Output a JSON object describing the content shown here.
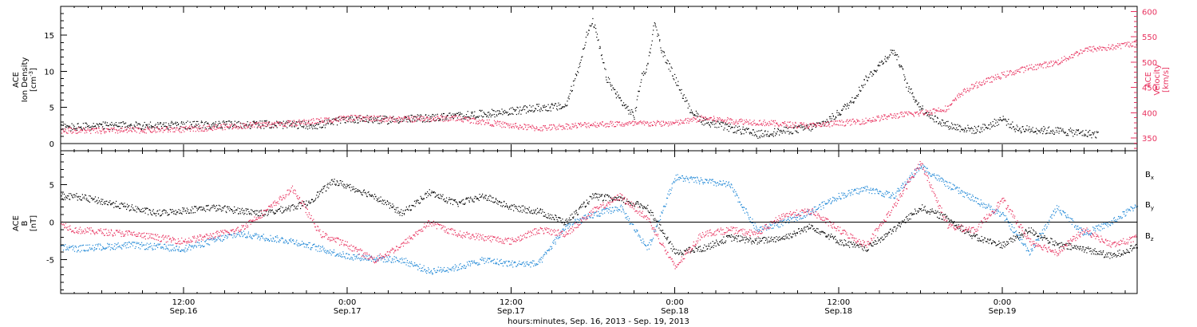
{
  "chart_data": [
    {
      "type": "scatter",
      "panel": "density-velocity",
      "left_axis": {
        "instrument": "ACE",
        "label": "Ion Density",
        "unit": "[cm",
        "unit_exp": "-3",
        "unit_close": "]",
        "range": [
          -1,
          19
        ],
        "ticks": [
          0,
          5,
          10,
          15
        ],
        "tick_labels": [
          "0",
          "5",
          "10",
          "15"
        ]
      },
      "right_axis": {
        "instrument": "ACE",
        "label": "Velocity",
        "unit": "[km/s]",
        "range": [
          325,
          610
        ],
        "ticks": [
          350,
          400,
          450,
          500,
          550,
          600
        ],
        "tick_labels": [
          "350",
          "400",
          "450",
          "500",
          "550",
          "600"
        ],
        "color": "#e8325f"
      },
      "x_range_hours": [
        -8,
        72
      ],
      "series": [
        {
          "color": "#000000",
          "axis": "left",
          "values": [
            [
              -8,
              2.5
            ],
            [
              -4,
              2.3
            ],
            [
              0,
              2.0
            ],
            [
              6,
              2.5
            ],
            [
              12,
              2.6
            ],
            [
              18,
              2.7
            ],
            [
              22,
              2.6
            ],
            [
              24,
              3.5
            ],
            [
              27,
              3.3
            ],
            [
              30,
              3.6
            ],
            [
              33,
              4.0
            ],
            [
              36,
              4.5
            ],
            [
              38,
              5.0
            ],
            [
              40,
              5.2
            ],
            [
              41,
              11
            ],
            [
              41.5,
              15
            ],
            [
              42,
              17
            ],
            [
              42.5,
              13
            ],
            [
              43,
              9
            ],
            [
              44,
              6
            ],
            [
              45,
              3.8
            ],
            [
              45.5,
              9
            ],
            [
              46,
              11
            ],
            [
              46.5,
              17
            ],
            [
              47,
              13
            ],
            [
              48,
              9
            ],
            [
              49,
              5
            ],
            [
              50,
              3.2
            ],
            [
              52,
              2.2
            ],
            [
              53,
              1.8
            ],
            [
              54,
              1.3
            ],
            [
              56,
              1.8
            ],
            [
              58,
              2.3
            ],
            [
              59,
              3
            ],
            [
              60,
              4.3
            ],
            [
              61,
              6
            ],
            [
              62,
              9
            ],
            [
              63,
              11
            ],
            [
              64,
              13
            ],
            [
              64.5,
              11
            ],
            [
              65,
              8
            ],
            [
              66,
              5
            ],
            [
              67,
              3.5
            ],
            [
              68,
              2.6
            ],
            [
              69,
              2.2
            ],
            [
              70,
              1.9
            ],
            [
              71,
              2.5
            ],
            [
              72,
              3.5
            ],
            [
              73,
              2.1
            ],
            [
              74,
              2.0
            ],
            [
              76,
              1.8
            ],
            [
              79,
              1.3
            ]
          ]
        },
        {
          "color": "#e8325f",
          "axis": "right",
          "values": [
            [
              -8,
              365
            ],
            [
              -4,
              378
            ],
            [
              0,
              368
            ],
            [
              6,
              365
            ],
            [
              12,
              368
            ],
            [
              16,
              375
            ],
            [
              20,
              380
            ],
            [
              24,
              390
            ],
            [
              28,
              388
            ],
            [
              32,
              390
            ],
            [
              36,
              375
            ],
            [
              38,
              370
            ],
            [
              42,
              378
            ],
            [
              48,
              380
            ],
            [
              50,
              390
            ],
            [
              52,
              385
            ],
            [
              54,
              382
            ],
            [
              56,
              378
            ],
            [
              58,
              375
            ],
            [
              60,
              380
            ],
            [
              62,
              385
            ],
            [
              64,
              395
            ],
            [
              66,
              400
            ],
            [
              68,
              410
            ],
            [
              69,
              440
            ],
            [
              70,
              455
            ],
            [
              72,
              475
            ],
            [
              74,
              490
            ],
            [
              76,
              500
            ],
            [
              78,
              525
            ],
            [
              80,
              530
            ],
            [
              82,
              540
            ],
            [
              84,
              550
            ],
            [
              86,
              565
            ],
            [
              88,
              560
            ],
            [
              90,
              545
            ],
            [
              92,
              545
            ]
          ]
        }
      ]
    },
    {
      "type": "scatter",
      "panel": "magnetic-field",
      "left_axis": {
        "instrument": "ACE",
        "label": "B",
        "unit": "[nT]",
        "range": [
          -9.5,
          9.5
        ],
        "ticks": [
          -5,
          0,
          5
        ],
        "tick_labels": [
          "-5",
          "0",
          "5"
        ]
      },
      "x_range_hours": [
        -8,
        72
      ],
      "series": [
        {
          "name": "B",
          "subscript": "x",
          "color": "#000000",
          "values": [
            [
              -8,
              3.5
            ],
            [
              -4,
              1.5
            ],
            [
              0,
              3.2
            ],
            [
              4,
              3.5
            ],
            [
              6,
              2.8
            ],
            [
              10,
              1.2
            ],
            [
              14,
              2.0
            ],
            [
              18,
              1.2
            ],
            [
              21,
              2.5
            ],
            [
              23,
              5.5
            ],
            [
              26,
              3.5
            ],
            [
              28,
              1.2
            ],
            [
              30,
              4.0
            ],
            [
              32,
              2.5
            ],
            [
              34,
              3.5
            ],
            [
              36,
              2.0
            ],
            [
              38,
              1.5
            ],
            [
              40,
              0
            ],
            [
              42,
              3.5
            ],
            [
              44,
              3.0
            ],
            [
              46,
              2.0
            ],
            [
              48,
              -4.0
            ],
            [
              50,
              -3.5
            ],
            [
              52,
              -2.0
            ],
            [
              54,
              -2.5
            ],
            [
              56,
              -2.0
            ],
            [
              58,
              -0.5
            ],
            [
              60,
              -2.5
            ],
            [
              62,
              -3.5
            ],
            [
              64,
              -1.0
            ],
            [
              66,
              2.0
            ],
            [
              68,
              0.5
            ],
            [
              70,
              -2.0
            ],
            [
              72,
              -3.0
            ],
            [
              74,
              -1.0
            ],
            [
              76,
              -3.0
            ],
            [
              78,
              -3.5
            ],
            [
              80,
              -4.5
            ],
            [
              82,
              -3.0
            ],
            [
              84,
              -4.0
            ],
            [
              86,
              -4.0
            ]
          ]
        },
        {
          "name": "B",
          "subscript": "y",
          "color": "#1f87d6",
          "values": [
            [
              -8,
              -3.0
            ],
            [
              -4,
              -4.0
            ],
            [
              0,
              -2.5
            ],
            [
              4,
              -3.5
            ],
            [
              8,
              -3.0
            ],
            [
              12,
              -3.5
            ],
            [
              16,
              -1.5
            ],
            [
              20,
              -2.5
            ],
            [
              24,
              -4.5
            ],
            [
              28,
              -5.0
            ],
            [
              30,
              -6.5
            ],
            [
              32,
              -6.0
            ],
            [
              34,
              -5.0
            ],
            [
              36,
              -5.5
            ],
            [
              38,
              -5.5
            ],
            [
              40,
              -0.5
            ],
            [
              42,
              1.0
            ],
            [
              44,
              2.0
            ],
            [
              46,
              -3.5
            ],
            [
              48,
              6.0
            ],
            [
              50,
              5.5
            ],
            [
              52,
              5.0
            ],
            [
              54,
              -1.0
            ],
            [
              56,
              0
            ],
            [
              58,
              1.5
            ],
            [
              60,
              3.5
            ],
            [
              62,
              4.5
            ],
            [
              64,
              3.5
            ],
            [
              66,
              7.5
            ],
            [
              68,
              5.0
            ],
            [
              70,
              3.0
            ],
            [
              72,
              1.0
            ],
            [
              74,
              -4.0
            ],
            [
              76,
              2.0
            ],
            [
              78,
              -1.5
            ],
            [
              80,
              0
            ],
            [
              82,
              2.5
            ],
            [
              84,
              2.0
            ],
            [
              86,
              3.0
            ]
          ]
        },
        {
          "name": "B",
          "subscript": "z",
          "color": "#e8325f",
          "values": [
            [
              -8,
              -2.0
            ],
            [
              -4,
              -1.0
            ],
            [
              0,
              2.5
            ],
            [
              4,
              -1.0
            ],
            [
              8,
              -1.5
            ],
            [
              12,
              -2.5
            ],
            [
              16,
              -1.0
            ],
            [
              18,
              1.5
            ],
            [
              20,
              4.5
            ],
            [
              22,
              -1.5
            ],
            [
              24,
              -3.0
            ],
            [
              26,
              -5.0
            ],
            [
              28,
              -3.0
            ],
            [
              30,
              0
            ],
            [
              32,
              -1.5
            ],
            [
              34,
              -2.0
            ],
            [
              36,
              -2.5
            ],
            [
              38,
              -1.0
            ],
            [
              40,
              -1.5
            ],
            [
              42,
              1.5
            ],
            [
              44,
              3.5
            ],
            [
              46,
              0.5
            ],
            [
              48,
              -6.0
            ],
            [
              50,
              -1.5
            ],
            [
              52,
              -1.0
            ],
            [
              54,
              -1.5
            ],
            [
              56,
              1.0
            ],
            [
              58,
              1.5
            ],
            [
              60,
              -1.0
            ],
            [
              62,
              -3.0
            ],
            [
              64,
              2.0
            ],
            [
              66,
              8.0
            ],
            [
              68,
              -0.5
            ],
            [
              70,
              -1.0
            ],
            [
              72,
              3.0
            ],
            [
              74,
              -2.5
            ],
            [
              76,
              -4.0
            ],
            [
              78,
              -1.0
            ],
            [
              80,
              -3.0
            ],
            [
              82,
              -2.0
            ],
            [
              84,
              -3.0
            ],
            [
              86,
              -2.5
            ]
          ]
        }
      ]
    }
  ],
  "x_axis": {
    "tick_labels": [
      {
        "time": "12:00",
        "date": "Sep.16",
        "hours": 12
      },
      {
        "time": "0:00",
        "date": "Sep.17",
        "hours": 24
      },
      {
        "time": "12:00",
        "date": "Sep.17",
        "hours": 36
      },
      {
        "time": "0:00",
        "date": "Sep.18",
        "hours": 48
      },
      {
        "time": "12:00",
        "date": "Sep.18",
        "hours": 60
      },
      {
        "time": "0:00",
        "date": "Sep.19",
        "hours": 72
      }
    ],
    "label": "hours:minutes, Sep. 16, 2013 - Sep. 19, 2013"
  }
}
